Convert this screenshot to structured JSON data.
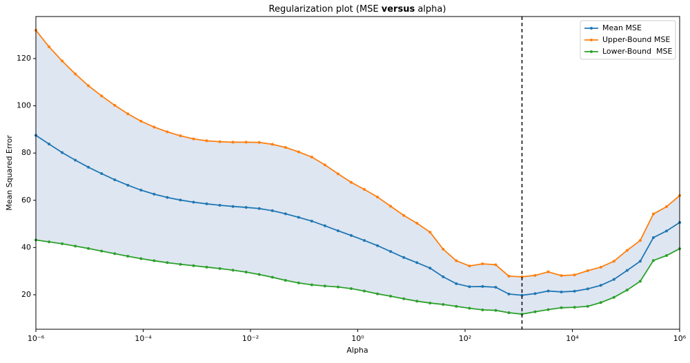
{
  "chart_data": {
    "type": "line",
    "title_segments": [
      "Regularization plot (MSE ",
      "versus",
      " alpha)"
    ],
    "title_bold_segment": 1,
    "x_label": "Alpha",
    "y_label": "Mean Squared Error",
    "xscale": "log",
    "xlim": [
      1e-06,
      1000000
    ],
    "ylim": [
      5.4,
      137.8
    ],
    "xticks": [
      {
        "value": 1e-06,
        "label": "10⁻⁶"
      },
      {
        "value": 0.0001,
        "label": "10⁻⁴"
      },
      {
        "value": 0.01,
        "label": "10⁻²"
      },
      {
        "value": 1,
        "label": "10⁰"
      },
      {
        "value": 100,
        "label": "10²"
      },
      {
        "value": 10000,
        "label": "10⁴"
      },
      {
        "value": 1000000,
        "label": "10⁶"
      }
    ],
    "yticks": [
      20,
      40,
      60,
      80,
      100,
      120
    ],
    "legend": "upper right",
    "x": [
      1e-06,
      1.758e-06,
      3.089e-06,
      5.429e-06,
      9.541e-06,
      1.677e-05,
      2.947e-05,
      5.179e-05,
      9.103e-05,
      0.00016,
      0.0002812,
      0.0004942,
      0.0008685,
      0.001526,
      0.002683,
      0.004715,
      0.008286,
      0.01456,
      0.0256,
      0.04498,
      0.07906,
      0.1389,
      0.2442,
      0.4292,
      0.7543,
      1.326,
      2.33,
      4.095,
      7.197,
      12.65,
      22.23,
      39.07,
      68.66,
      120.7,
      212.1,
      372.8,
      655.1,
      1151,
      2024,
      3556,
      6251,
      10985,
      19307,
      33932,
      59636,
      104811,
      184207,
      323746,
      568987,
      1000000
    ],
    "series": [
      {
        "name": "Mean MSE",
        "color": "#1f77b4",
        "values": [
          87.5,
          83.8,
          80.2,
          77,
          74,
          71.3,
          68.7,
          66.4,
          64.3,
          62.6,
          61.2,
          60.1,
          59.2,
          58.5,
          57.9,
          57.4,
          57,
          56.5,
          55.6,
          54.3,
          52.8,
          51.2,
          49.2,
          47.1,
          45.1,
          43,
          40.8,
          38.3,
          35.8,
          33.6,
          31.3,
          27.6,
          24.7,
          23.4,
          23.5,
          23.2,
          20.3,
          19.8,
          20.5,
          21.6,
          21.2,
          21.5,
          22.5,
          24,
          26.5,
          30.3,
          34.2,
          44.2,
          47,
          50.6
        ]
      },
      {
        "name": "Upper-Bound MSE",
        "color": "#ff7f0e",
        "values": [
          132,
          125,
          119,
          113.5,
          108.5,
          104.2,
          100.2,
          96.6,
          93.5,
          91,
          89,
          87.3,
          86,
          85.2,
          84.8,
          84.6,
          84.6,
          84.5,
          83.7,
          82.4,
          80.5,
          78.3,
          75,
          71.2,
          67.6,
          64.6,
          61.4,
          57.5,
          53.6,
          50.3,
          46.5,
          39.3,
          34.4,
          32.2,
          33.1,
          32.7,
          27.9,
          27.6,
          28.2,
          29.7,
          28.1,
          28.4,
          30.2,
          31.7,
          34.2,
          38.8,
          43,
          54.2,
          57.3,
          62
        ]
      },
      {
        "name": "Lower-Bound  MSE",
        "color": "#2ca02c",
        "values": [
          43.2,
          42.4,
          41.6,
          40.6,
          39.6,
          38.5,
          37.4,
          36.3,
          35.3,
          34.4,
          33.6,
          32.9,
          32.3,
          31.7,
          31.1,
          30.4,
          29.6,
          28.6,
          27.4,
          26.1,
          25,
          24.2,
          23.7,
          23.3,
          22.6,
          21.6,
          20.4,
          19.4,
          18.3,
          17.3,
          16.5,
          15.9,
          15.1,
          14.3,
          13.6,
          13.4,
          12.4,
          11.8,
          12.8,
          13.7,
          14.5,
          14.7,
          15.1,
          16.7,
          18.9,
          22,
          25.7,
          34.5,
          36.6,
          39.5
        ]
      }
    ],
    "band": {
      "between": [
        1,
        2
      ],
      "color": "#dee6f1"
    },
    "vline": {
      "x": 1151,
      "color": "#000000",
      "dash": "5 4"
    }
  }
}
